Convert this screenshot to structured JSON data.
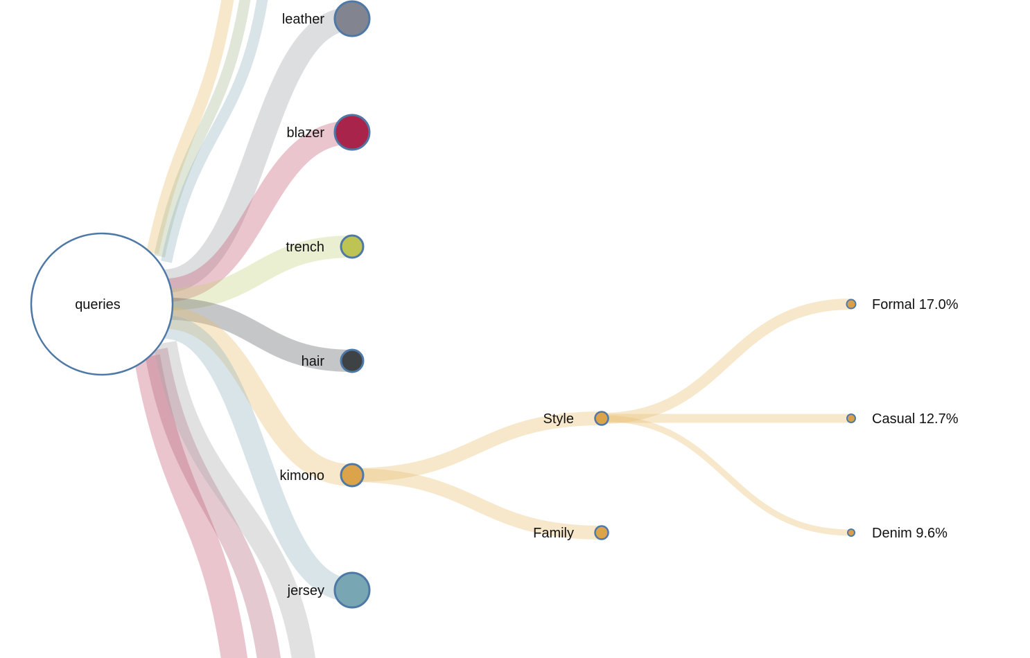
{
  "root": {
    "label": "queries",
    "fill": "#ffffff",
    "stroke": "#4e79a7"
  },
  "link_opacity": 0.35,
  "level1": [
    {
      "label": "leather",
      "color": "#82848f",
      "link": "#9fa1a7",
      "size": 1.0
    },
    {
      "label": "blazer",
      "color": "#a8244a",
      "link": "#c5586f",
      "size": 1.0
    },
    {
      "label": "trench",
      "color": "#bdc454",
      "link": "#c7d07c",
      "size": 0.6
    },
    {
      "label": "hair",
      "color": "#3e4245",
      "link": "#5a5c60",
      "size": 0.6
    },
    {
      "label": "kimono",
      "color": "#dca44a",
      "link": "#e7bc6c",
      "size": 0.6
    },
    {
      "label": "jersey",
      "color": "#78a6b2",
      "link": "#8fb3bd",
      "size": 1.0
    }
  ],
  "offscreen_links": [
    {
      "color": "#e7bc6c",
      "width": 18
    },
    {
      "color": "#a6b890",
      "width": 16
    },
    {
      "color": "#8fb3bd",
      "width": 16
    },
    {
      "color": "#c5586f",
      "width": 38
    },
    {
      "color": "#b5637c",
      "width": 34
    },
    {
      "color": "#a9a9ad",
      "width": 34
    }
  ],
  "level2": [
    {
      "label": "Style",
      "parent": "kimono",
      "color": "#dca44a"
    },
    {
      "label": "Family",
      "parent": "kimono",
      "color": "#dca44a"
    }
  ],
  "level3": [
    {
      "label": "Formal 17.0%",
      "parent": "Style",
      "color": "#d9a049"
    },
    {
      "label": "Casual 12.7%",
      "parent": "Style",
      "color": "#d9a049"
    },
    {
      "label": "Denim 9.6%",
      "parent": "Style",
      "color": "#d9a049"
    }
  ]
}
